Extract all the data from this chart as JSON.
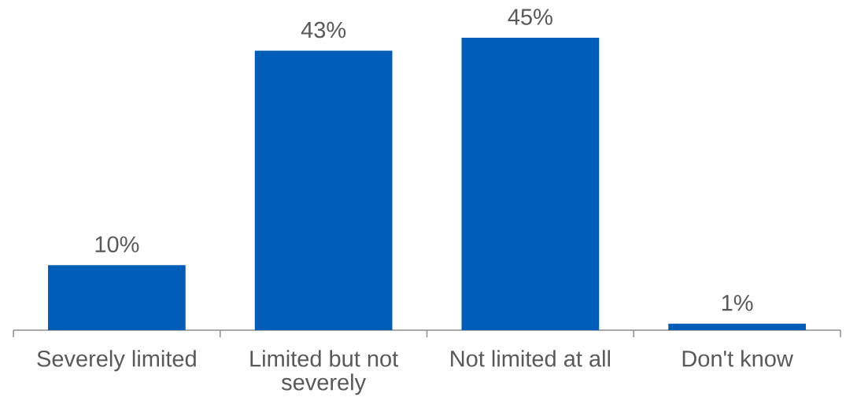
{
  "chart_data": {
    "type": "bar",
    "categories": [
      "Severely limited",
      "Limited but not severely",
      "Not limited at all",
      "Don't know"
    ],
    "values": [
      10,
      43,
      45,
      1
    ],
    "color": "#005eb8",
    "value_labels": [
      "10%",
      "43%",
      "45%",
      "1%"
    ]
  }
}
